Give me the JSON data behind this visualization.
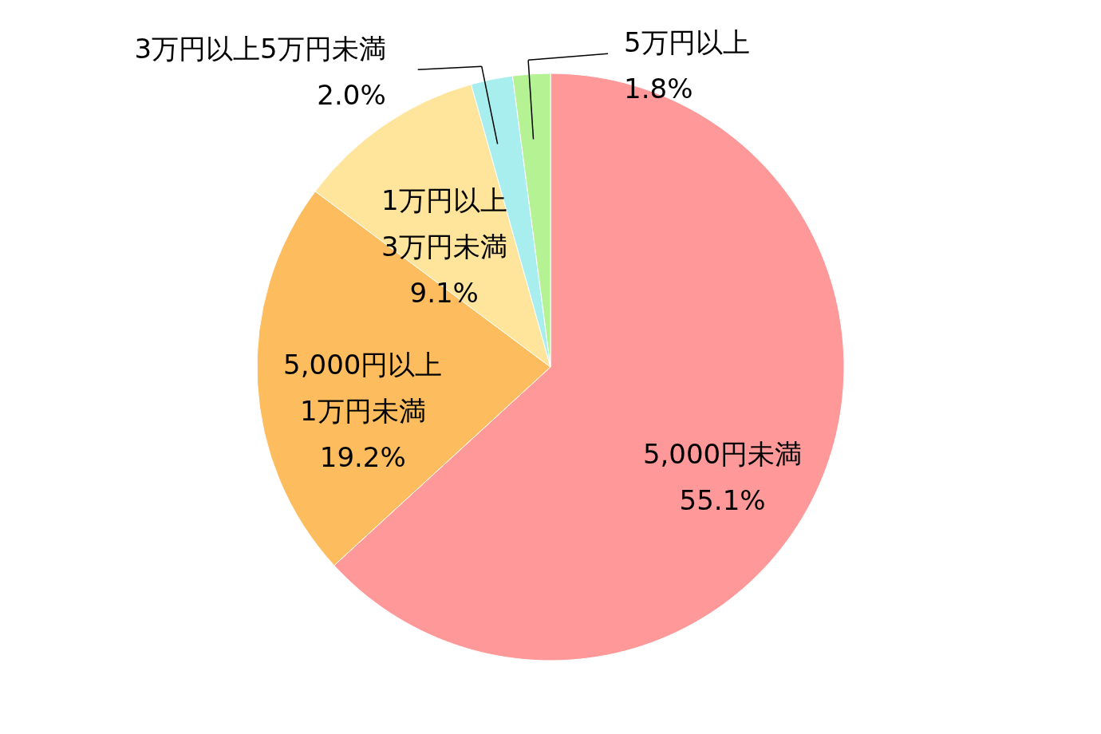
{
  "chart_data": {
    "type": "pie",
    "categories": [
      "5,000円未満",
      "5,000円以上\n1万円未満",
      "1万円以上\n3万円未満",
      "3万円以上5万円未満",
      "5万円以上"
    ],
    "values": [
      55.1,
      19.2,
      9.1,
      2.0,
      1.8
    ],
    "value_labels": [
      "55.1%",
      "19.2%",
      "9.1%",
      "2.0%",
      "1.8%"
    ],
    "colors": [
      "#ff9999",
      "#fdbd5f",
      "#ffe49c",
      "#a8eeee",
      "#b5f294"
    ]
  }
}
